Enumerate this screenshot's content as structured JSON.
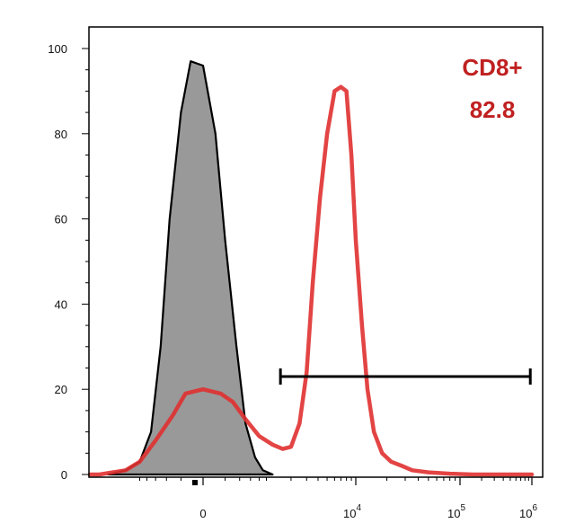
{
  "chart_data": {
    "type": "area",
    "title": "",
    "xlabel": "",
    "ylabel": "",
    "x_scale": "biexponential",
    "ylim": [
      0,
      100
    ],
    "grid": false,
    "legend": "none",
    "y_ticks": [
      "0",
      "20",
      "40",
      "60",
      "80",
      "100"
    ],
    "x_ticks": [
      {
        "label": "0",
        "sup": "",
        "value": 0
      },
      {
        "label": "10",
        "sup": "4",
        "value": 10000
      },
      {
        "label": "10",
        "sup": "5",
        "value": 100000
      },
      {
        "label": "10",
        "sup": "6",
        "value": 1000000
      }
    ],
    "annotations": [
      {
        "text": "CD8+",
        "color": "#c02020"
      },
      {
        "text": "82.8",
        "color": "#c02020"
      }
    ],
    "gate": {
      "from": 1500,
      "to": 950000,
      "y": 23
    },
    "series": [
      {
        "style": "filled",
        "fill": "#999999",
        "stroke": "#000000",
        "x": [
          -2400,
          -1500,
          -1000,
          -700,
          -500,
          -350,
          -200,
          -100,
          0,
          100,
          200,
          350,
          500,
          700,
          900,
          1200
        ],
        "y": [
          0,
          1,
          3,
          10,
          30,
          60,
          85,
          97,
          96,
          80,
          55,
          30,
          12,
          4,
          1,
          0
        ]
      },
      {
        "style": "line",
        "stroke": "#e03030",
        "x": [
          -80000,
          -10000,
          -3000,
          -1500,
          -1000,
          -600,
          -300,
          -150,
          0,
          150,
          300,
          500,
          800,
          1200,
          1600,
          2000,
          2500,
          3000,
          3500,
          4200,
          5000,
          6000,
          7000,
          8000,
          9000,
          10000,
          11500,
          13000,
          15000,
          18000,
          22000,
          28000,
          35000,
          50000,
          80000,
          150000,
          1000000
        ],
        "y": [
          0,
          0,
          0,
          1,
          3,
          8,
          14,
          19,
          20,
          19,
          17,
          13,
          9,
          7,
          6,
          6.5,
          12,
          24,
          45,
          65,
          80,
          90,
          91,
          90,
          75,
          55,
          35,
          20,
          10,
          5,
          3,
          2,
          1,
          0.5,
          0.2,
          0,
          0
        ]
      }
    ]
  }
}
